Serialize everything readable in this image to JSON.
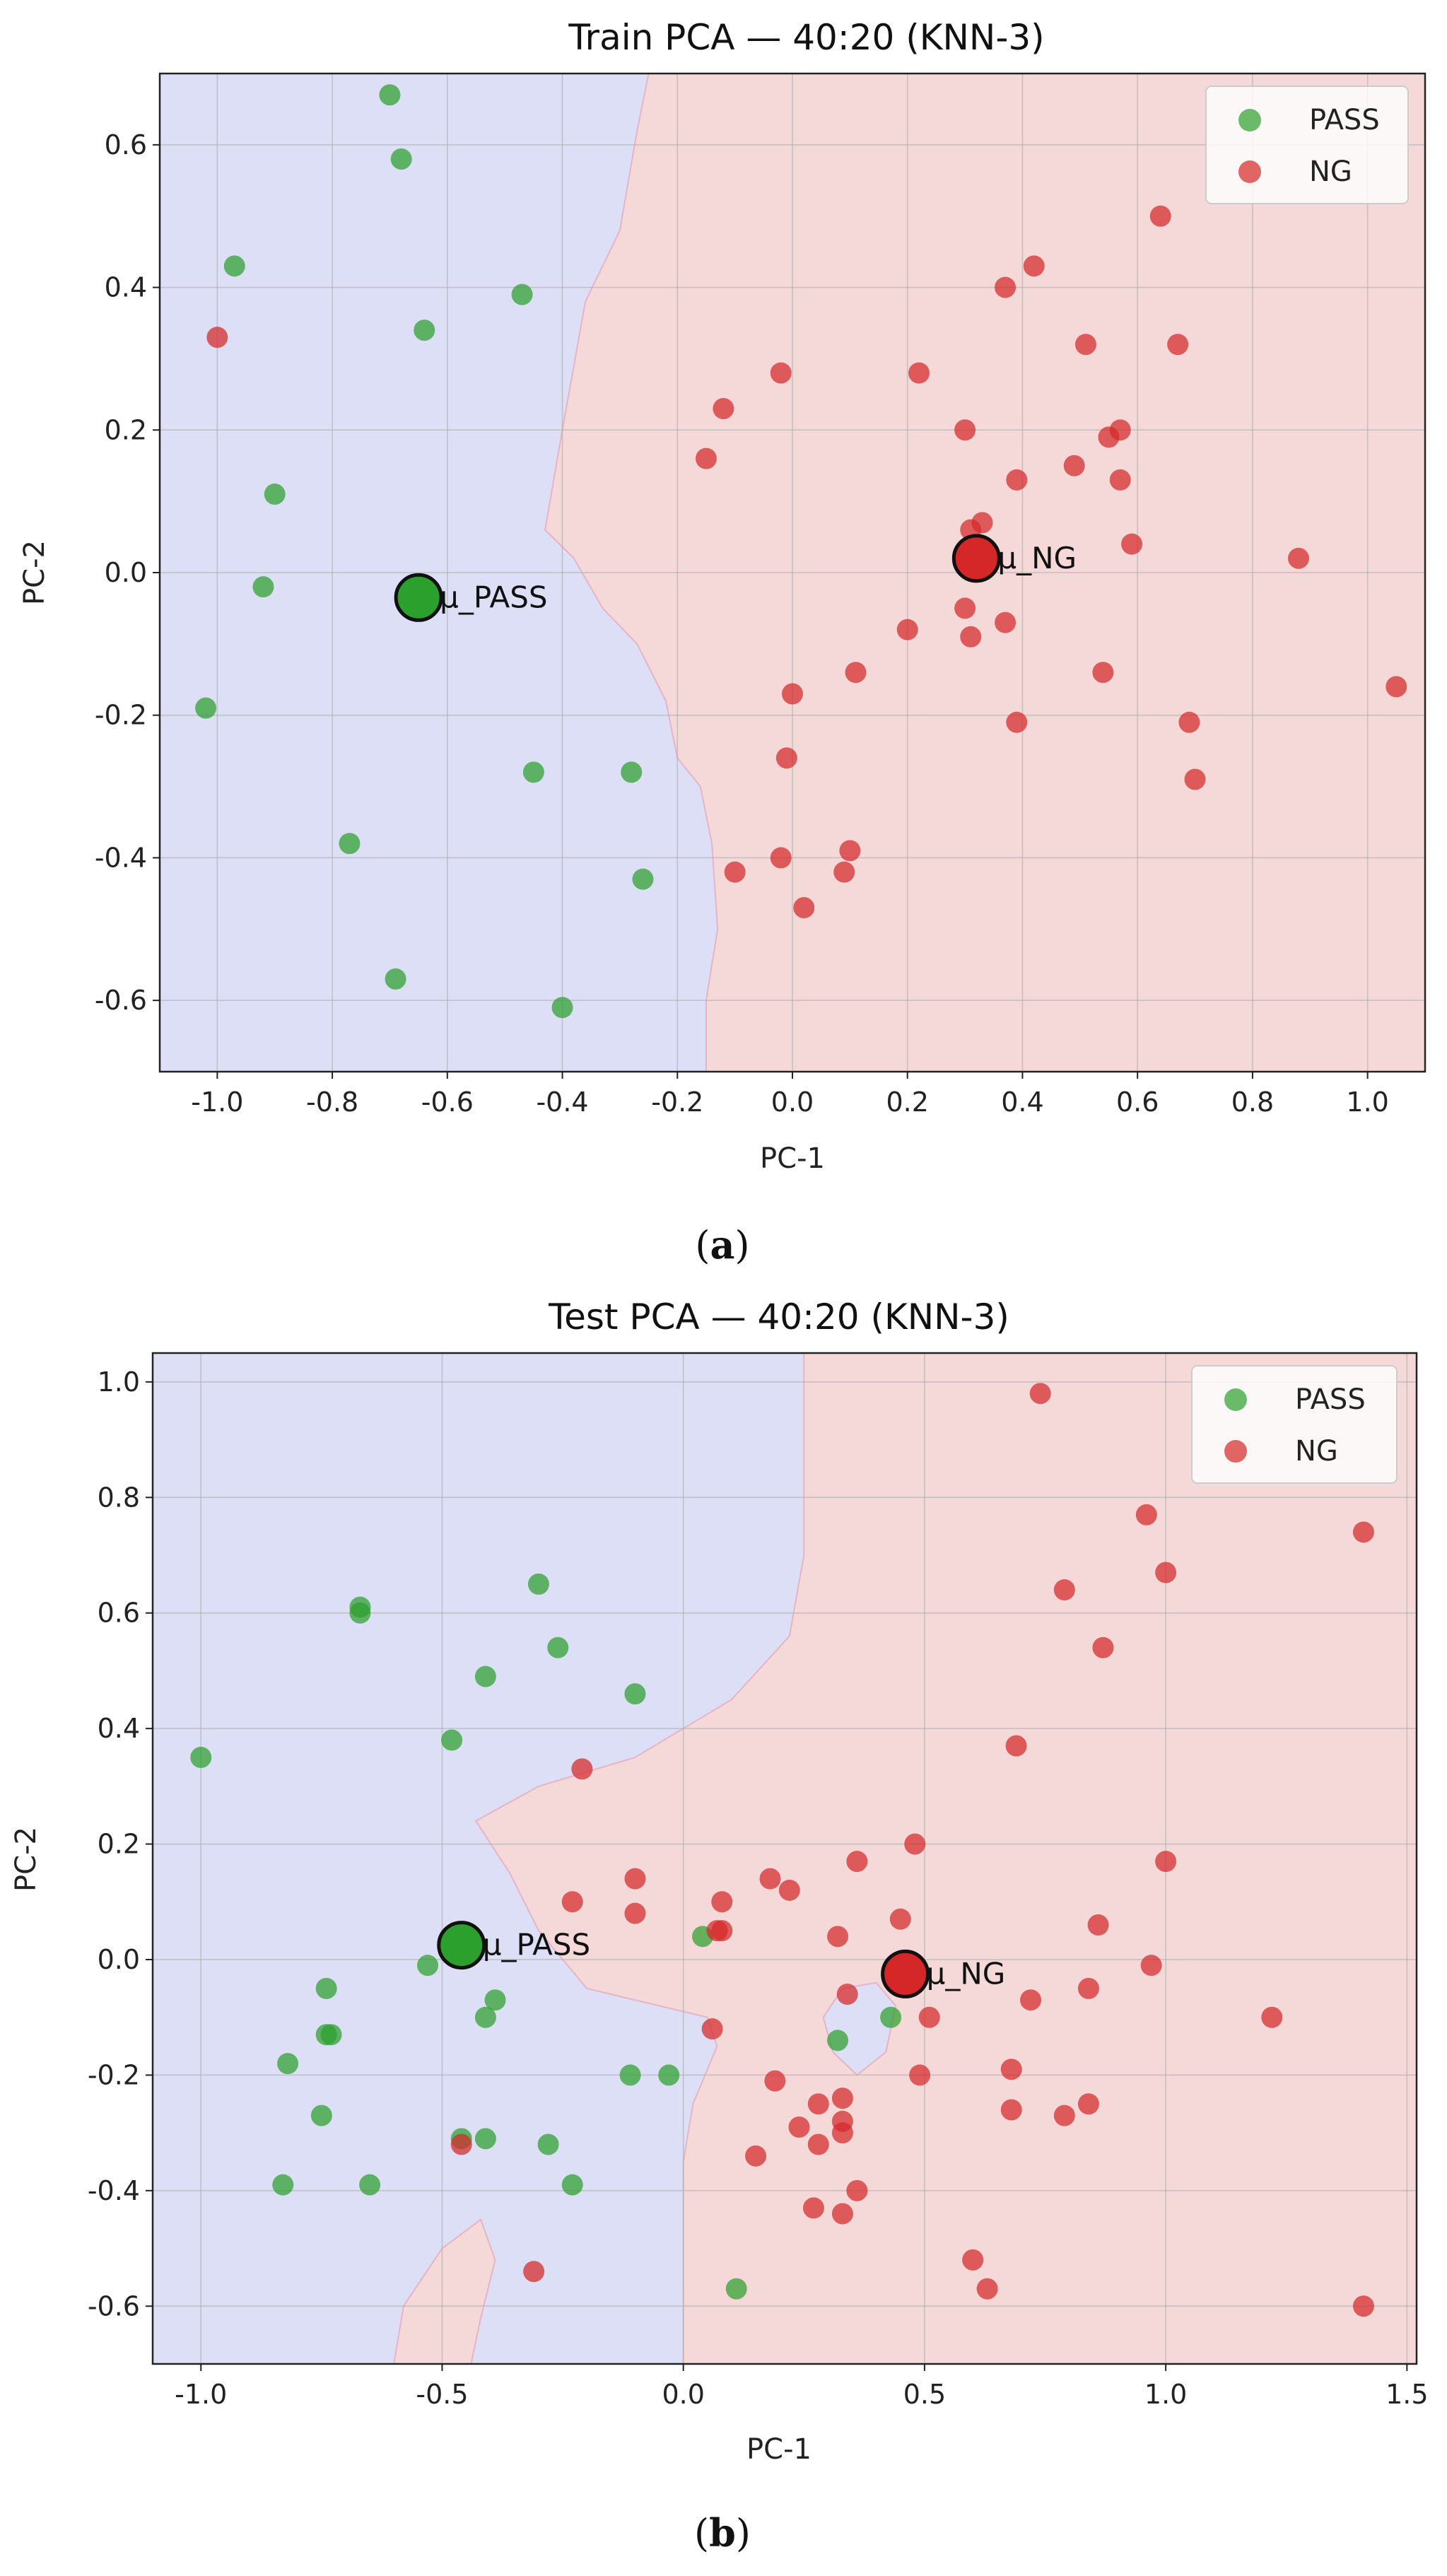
{
  "colors": {
    "pass_point": "#2ca02c",
    "ng_point": "#d62728",
    "pass_region": "#dcdff5",
    "ng_region": "#f5d9d9",
    "region_edge": "#e7b3c6",
    "grid": "#b0b0b0"
  },
  "chart_data": [
    {
      "type": "scatter",
      "title": "Train PCA — 40:20 (KNN-3)",
      "xlabel": "PC-1",
      "ylabel": "PC-2",
      "xlim": [
        -1.1,
        1.1
      ],
      "ylim": [
        -0.7,
        0.7
      ],
      "xticks": [
        -1.0,
        -0.8,
        -0.6,
        -0.4,
        -0.2,
        0.0,
        0.2,
        0.4,
        0.6,
        0.8,
        1.0
      ],
      "xtick_labels": [
        "-1.0",
        "-0.8",
        "-0.6",
        "-0.4",
        "-0.2",
        "0.0",
        "0.2",
        "0.4",
        "0.6",
        "0.8",
        "1.0"
      ],
      "yticks": [
        -0.6,
        -0.4,
        -0.2,
        0.0,
        0.2,
        0.4,
        0.6
      ],
      "ytick_labels": [
        "-0.6",
        "-0.4",
        "-0.2",
        "0.0",
        "0.2",
        "0.4",
        "0.6"
      ],
      "legend": {
        "position": "top-right",
        "entries": [
          "PASS",
          "NG"
        ]
      },
      "boundary": [
        [
          -0.25,
          0.7
        ],
        [
          -0.27,
          0.62
        ],
        [
          -0.3,
          0.48
        ],
        [
          -0.36,
          0.38
        ],
        [
          -0.4,
          0.2
        ],
        [
          -0.43,
          0.06
        ],
        [
          -0.38,
          0.02
        ],
        [
          -0.33,
          -0.05
        ],
        [
          -0.27,
          -0.1
        ],
        [
          -0.22,
          -0.18
        ],
        [
          -0.2,
          -0.26
        ],
        [
          -0.16,
          -0.3
        ],
        [
          -0.14,
          -0.38
        ],
        [
          -0.13,
          -0.5
        ],
        [
          -0.15,
          -0.6
        ],
        [
          -0.15,
          -0.7
        ]
      ],
      "series": [
        {
          "name": "PASS",
          "points": [
            [
              -0.7,
              0.67
            ],
            [
              -0.68,
              0.58
            ],
            [
              -0.97,
              0.43
            ],
            [
              -0.47,
              0.39
            ],
            [
              -0.64,
              0.34
            ],
            [
              -0.9,
              0.11
            ],
            [
              -0.92,
              -0.02
            ],
            [
              -1.02,
              -0.19
            ],
            [
              -0.45,
              -0.28
            ],
            [
              -0.28,
              -0.28
            ],
            [
              -0.77,
              -0.38
            ],
            [
              -0.26,
              -0.43
            ],
            [
              -0.69,
              -0.57
            ],
            [
              -0.4,
              -0.61
            ]
          ]
        },
        {
          "name": "NG",
          "points": [
            [
              -1.0,
              0.33
            ],
            [
              0.64,
              0.5
            ],
            [
              0.42,
              0.43
            ],
            [
              0.37,
              0.4
            ],
            [
              0.51,
              0.32
            ],
            [
              0.67,
              0.32
            ],
            [
              0.22,
              0.28
            ],
            [
              -0.02,
              0.28
            ],
            [
              -0.12,
              0.23
            ],
            [
              0.3,
              0.2
            ],
            [
              0.57,
              0.2
            ],
            [
              0.55,
              0.19
            ],
            [
              -0.15,
              0.16
            ],
            [
              0.49,
              0.15
            ],
            [
              0.57,
              0.13
            ],
            [
              0.39,
              0.13
            ],
            [
              0.33,
              0.07
            ],
            [
              0.31,
              0.06
            ],
            [
              0.59,
              0.04
            ],
            [
              0.88,
              0.02
            ],
            [
              0.2,
              -0.08
            ],
            [
              0.3,
              -0.05
            ],
            [
              0.31,
              -0.09
            ],
            [
              0.37,
              -0.07
            ],
            [
              0.11,
              -0.14
            ],
            [
              0.54,
              -0.14
            ],
            [
              0.0,
              -0.17
            ],
            [
              1.05,
              -0.16
            ],
            [
              0.39,
              -0.21
            ],
            [
              0.69,
              -0.21
            ],
            [
              -0.01,
              -0.26
            ],
            [
              0.7,
              -0.29
            ],
            [
              0.1,
              -0.39
            ],
            [
              -0.02,
              -0.4
            ],
            [
              -0.1,
              -0.42
            ],
            [
              0.09,
              -0.42
            ],
            [
              0.02,
              -0.47
            ]
          ]
        }
      ],
      "centroids": [
        {
          "label": "μ_PASS",
          "x": -0.65,
          "y": -0.035
        },
        {
          "label": "μ_NG",
          "x": 0.32,
          "y": 0.02
        }
      ]
    },
    {
      "type": "scatter",
      "title": "Test  PCA — 40:20 (KNN-3)",
      "xlabel": "PC-1",
      "ylabel": "PC-2",
      "xlim": [
        -1.1,
        1.52
      ],
      "ylim": [
        -0.7,
        1.05
      ],
      "xticks": [
        -1.0,
        -0.5,
        0.0,
        0.5,
        1.0,
        1.5
      ],
      "xtick_labels": [
        "-1.0",
        "-0.5",
        "0.0",
        "0.5",
        "1.0",
        "1.5"
      ],
      "yticks": [
        -0.6,
        -0.4,
        -0.2,
        0.0,
        0.2,
        0.4,
        0.6,
        0.8,
        1.0
      ],
      "ytick_labels": [
        "-0.6",
        "-0.4",
        "-0.2",
        "0.0",
        "0.2",
        "0.4",
        "0.6",
        "0.8",
        "1.0"
      ],
      "legend": {
        "position": "top-right",
        "entries": [
          "PASS",
          "NG"
        ]
      },
      "boundary": [
        [
          0.25,
          1.05
        ],
        [
          0.25,
          0.7
        ],
        [
          0.22,
          0.56
        ],
        [
          0.1,
          0.45
        ],
        [
          -0.1,
          0.35
        ],
        [
          -0.3,
          0.3
        ],
        [
          -0.43,
          0.24
        ],
        [
          -0.36,
          0.15
        ],
        [
          -0.3,
          0.05
        ],
        [
          -0.2,
          -0.05
        ],
        [
          -0.05,
          -0.08
        ],
        [
          0.05,
          -0.1
        ],
        [
          0.07,
          -0.15
        ],
        [
          0.02,
          -0.25
        ],
        [
          0.0,
          -0.35
        ],
        [
          0.0,
          -0.7
        ]
      ],
      "islands": [
        {
          "class": "NG",
          "polygon": [
            [
              -0.6,
              -0.7
            ],
            [
              -0.58,
              -0.6
            ],
            [
              -0.5,
              -0.5
            ],
            [
              -0.42,
              -0.45
            ],
            [
              -0.39,
              -0.52
            ],
            [
              -0.42,
              -0.62
            ],
            [
              -0.44,
              -0.7
            ]
          ]
        },
        {
          "class": "PASS",
          "polygon": [
            [
              0.29,
              -0.1
            ],
            [
              0.33,
              -0.05
            ],
            [
              0.4,
              -0.04
            ],
            [
              0.44,
              -0.08
            ],
            [
              0.42,
              -0.16
            ],
            [
              0.36,
              -0.2
            ],
            [
              0.31,
              -0.16
            ]
          ]
        }
      ],
      "series": [
        {
          "name": "PASS",
          "points": [
            [
              -0.67,
              0.61
            ],
            [
              -0.67,
              0.6
            ],
            [
              -0.3,
              0.65
            ],
            [
              -0.26,
              0.54
            ],
            [
              -0.41,
              0.49
            ],
            [
              -0.1,
              0.46
            ],
            [
              -0.48,
              0.38
            ],
            [
              -1.0,
              0.35
            ],
            [
              0.04,
              0.04
            ],
            [
              -0.53,
              -0.01
            ],
            [
              -0.39,
              -0.07
            ],
            [
              -0.41,
              -0.1
            ],
            [
              -0.74,
              -0.05
            ],
            [
              -0.74,
              -0.13
            ],
            [
              -0.73,
              -0.13
            ],
            [
              -0.82,
              -0.18
            ],
            [
              -0.75,
              -0.27
            ],
            [
              -0.11,
              -0.2
            ],
            [
              -0.03,
              -0.2
            ],
            [
              -0.46,
              -0.31
            ],
            [
              -0.41,
              -0.31
            ],
            [
              -0.28,
              -0.32
            ],
            [
              -0.83,
              -0.39
            ],
            [
              -0.65,
              -0.39
            ],
            [
              -0.23,
              -0.39
            ],
            [
              0.11,
              -0.57
            ],
            [
              0.32,
              -0.14
            ],
            [
              0.43,
              -0.1
            ]
          ]
        },
        {
          "name": "NG",
          "points": [
            [
              0.74,
              0.98
            ],
            [
              0.96,
              0.77
            ],
            [
              1.41,
              0.74
            ],
            [
              1.0,
              0.67
            ],
            [
              0.79,
              0.64
            ],
            [
              0.87,
              0.54
            ],
            [
              0.69,
              0.37
            ],
            [
              -0.21,
              0.33
            ],
            [
              0.48,
              0.2
            ],
            [
              1.0,
              0.17
            ],
            [
              0.36,
              0.17
            ],
            [
              -0.1,
              0.14
            ],
            [
              0.18,
              0.14
            ],
            [
              0.22,
              0.12
            ],
            [
              -0.23,
              0.1
            ],
            [
              0.08,
              0.1
            ],
            [
              -0.1,
              0.08
            ],
            [
              0.45,
              0.07
            ],
            [
              0.86,
              0.06
            ],
            [
              0.07,
              0.05
            ],
            [
              0.08,
              0.05
            ],
            [
              0.32,
              0.04
            ],
            [
              0.97,
              -0.01
            ],
            [
              0.34,
              -0.06
            ],
            [
              0.72,
              -0.07
            ],
            [
              0.84,
              -0.05
            ],
            [
              0.51,
              -0.1
            ],
            [
              1.22,
              -0.1
            ],
            [
              0.06,
              -0.12
            ],
            [
              0.68,
              -0.19
            ],
            [
              0.49,
              -0.2
            ],
            [
              0.19,
              -0.21
            ],
            [
              0.28,
              -0.25
            ],
            [
              0.33,
              -0.24
            ],
            [
              0.84,
              -0.25
            ],
            [
              0.68,
              -0.26
            ],
            [
              0.79,
              -0.27
            ],
            [
              0.24,
              -0.29
            ],
            [
              0.33,
              -0.28
            ],
            [
              0.33,
              -0.3
            ],
            [
              -0.46,
              -0.32
            ],
            [
              0.28,
              -0.32
            ],
            [
              0.15,
              -0.34
            ],
            [
              0.36,
              -0.4
            ],
            [
              0.27,
              -0.43
            ],
            [
              0.33,
              -0.44
            ],
            [
              0.6,
              -0.52
            ],
            [
              -0.31,
              -0.54
            ],
            [
              0.63,
              -0.57
            ],
            [
              1.41,
              -0.6
            ]
          ]
        }
      ],
      "centroids": [
        {
          "label": "μ_PASS",
          "x": -0.46,
          "y": 0.025
        },
        {
          "label": "μ_NG",
          "x": 0.46,
          "y": -0.025
        }
      ]
    }
  ],
  "captions": [
    {
      "open": "(",
      "letter": "a",
      "close": ")"
    },
    {
      "open": "(",
      "letter": "b",
      "close": ")"
    }
  ]
}
